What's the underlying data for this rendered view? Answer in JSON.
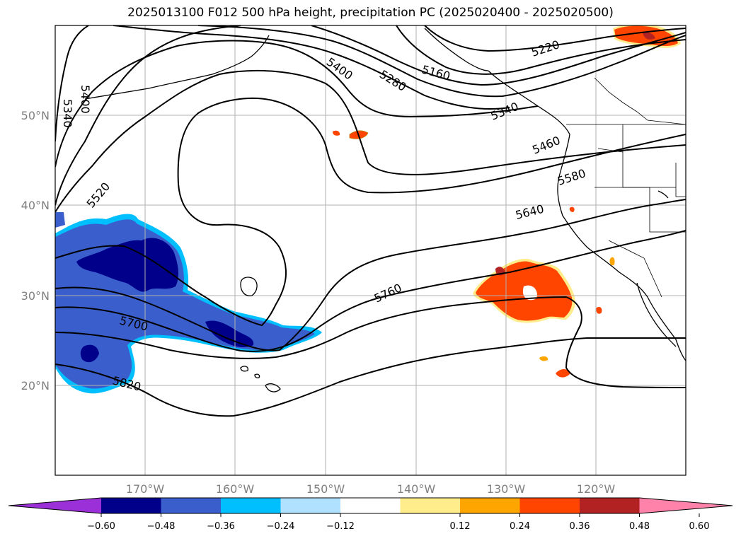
{
  "title": "2025013100 F012 500 hPa height, precipitation PC (2025020400 - 2025020500)",
  "map": {
    "lat_labels": [
      "50°N",
      "40°N",
      "30°N",
      "20°N"
    ],
    "lon_labels": [
      "170°W",
      "160°W",
      "150°W",
      "140°W",
      "130°W",
      "120°W"
    ],
    "contour_labels": [
      "5340",
      "5400",
      "5400",
      "5280",
      "5160",
      "5220",
      "5340",
      "5460",
      "5520",
      "5580",
      "5640",
      "5760",
      "5700",
      "5820"
    ]
  },
  "colorbar": {
    "ticks": [
      "−0.60",
      "−0.48",
      "−0.36",
      "−0.24",
      "−0.12",
      "0.12",
      "0.24",
      "0.36",
      "0.48",
      "0.60"
    ],
    "colors": [
      "#9b30d9",
      "#00008b",
      "#3a5fcd",
      "#00bfff",
      "#b0e2ff",
      "#ffffff",
      "#ffec8b",
      "#ffa500",
      "#ff4500",
      "#b22222",
      "#ff82ab"
    ]
  }
}
